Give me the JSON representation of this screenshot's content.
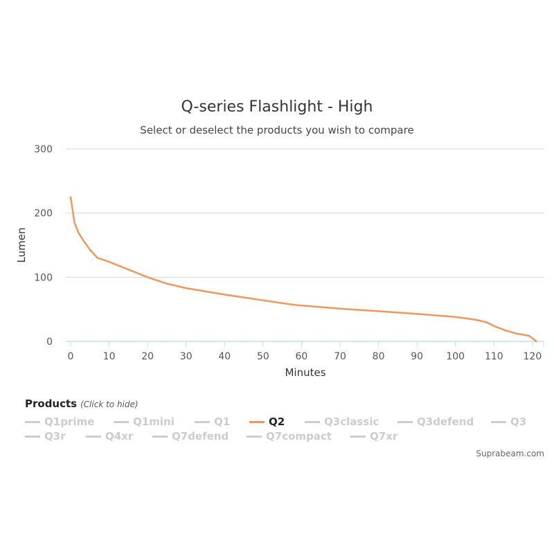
{
  "chart_data": {
    "type": "line",
    "title": "Q-series Flashlight - High",
    "subtitle": "Select or deselect the products you wish to compare",
    "xlabel": "Minutes",
    "ylabel": "Lumen",
    "xlim": [
      0,
      122
    ],
    "ylim": [
      0,
      300
    ],
    "x_ticks": [
      0,
      10,
      20,
      30,
      40,
      50,
      60,
      70,
      80,
      90,
      100,
      110,
      120
    ],
    "y_ticks": [
      0,
      100,
      200,
      300
    ],
    "series": [
      {
        "name": "Q2",
        "color": "#f0965a",
        "x": [
          0,
          1,
          2,
          3,
          5,
          7,
          10,
          15,
          20,
          25,
          30,
          40,
          50,
          58,
          70,
          80,
          90,
          100,
          105,
          108,
          110,
          113,
          116,
          119,
          120,
          121
        ],
        "y": [
          225,
          185,
          170,
          160,
          143,
          130,
          124,
          112,
          100,
          90,
          83,
          73,
          64,
          57,
          51,
          47,
          43,
          38,
          34,
          30,
          24,
          17,
          12,
          9,
          5,
          0
        ]
      }
    ]
  },
  "legend": {
    "title": "Products",
    "hint": "(Click to hide)",
    "items": [
      {
        "label": "Q1prime",
        "active": false
      },
      {
        "label": "Q1mini",
        "active": false
      },
      {
        "label": "Q1",
        "active": false
      },
      {
        "label": "Q2",
        "active": true
      },
      {
        "label": "Q3classic",
        "active": false
      },
      {
        "label": "Q3defend",
        "active": false
      },
      {
        "label": "Q3",
        "active": false
      },
      {
        "label": "Q3r",
        "active": false
      },
      {
        "label": "Q4xr",
        "active": false
      },
      {
        "label": "Q7defend",
        "active": false
      },
      {
        "label": "Q7compact",
        "active": false
      },
      {
        "label": "Q7xr",
        "active": false
      }
    ]
  },
  "credit": "Suprabeam.com"
}
